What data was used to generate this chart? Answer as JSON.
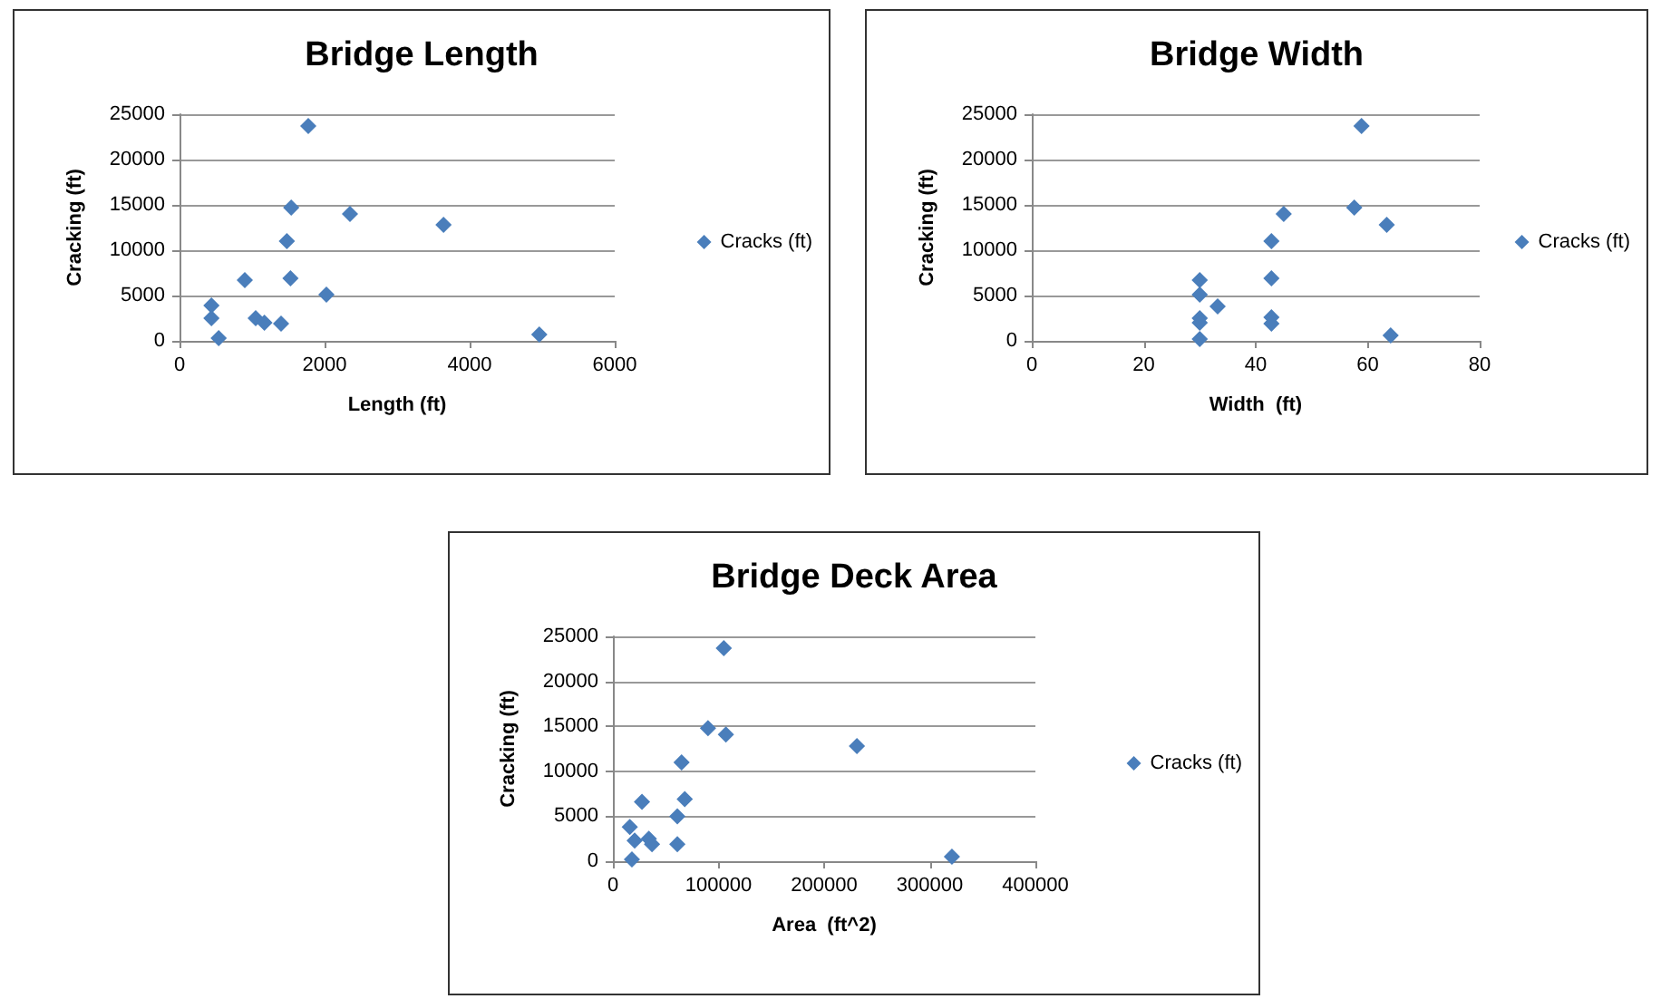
{
  "chart_data": [
    {
      "type": "scatter",
      "title": "Bridge Length",
      "xlabel": "Length (ft)",
      "ylabel": "Cracking (ft)",
      "xlim": [
        0,
        6000
      ],
      "xticks": [
        0,
        2000,
        4000,
        6000
      ],
      "ylim": [
        0,
        25000
      ],
      "yticks": [
        0,
        5000,
        10000,
        15000,
        20000,
        25000
      ],
      "grid": "y",
      "legend": "right",
      "marker": "diamond",
      "series": [
        {
          "name": "Cracks (ft)",
          "color": "#4a7ebb",
          "x": [
            1775,
            1540,
            2350,
            3640,
            1480,
            900,
            1530,
            2025,
            440,
            440,
            1050,
            1170,
            1400,
            540,
            4960
          ],
          "values": [
            23700,
            14700,
            14000,
            12800,
            11000,
            6700,
            6900,
            5100,
            3900,
            2500,
            2500,
            2000,
            1900,
            300,
            700
          ]
        }
      ]
    },
    {
      "type": "scatter",
      "title": "Bridge Width",
      "xlabel": "Width  (ft)",
      "ylabel": "Cracking (ft)",
      "xlim": [
        0,
        80
      ],
      "xticks": [
        0,
        20,
        40,
        60,
        80
      ],
      "ylim": [
        0,
        25000
      ],
      "yticks": [
        0,
        5000,
        10000,
        15000,
        20000,
        25000
      ],
      "grid": "y",
      "legend": "right",
      "marker": "diamond",
      "series": [
        {
          "name": "Cracks (ft)",
          "color": "#4a7ebb",
          "x": [
            58.9,
            57.6,
            45,
            63.4,
            42.8,
            30,
            42.8,
            30,
            33.2,
            30,
            30,
            42.8,
            42.8,
            30,
            64.1
          ],
          "values": [
            23700,
            14700,
            14000,
            12800,
            11000,
            6700,
            6900,
            5100,
            3800,
            2500,
            2000,
            2600,
            1900,
            200,
            600
          ]
        }
      ]
    },
    {
      "type": "scatter",
      "title": "Bridge Deck Area",
      "xlabel": "Area  (ft^2)",
      "ylabel": "Cracking (ft)",
      "xlim": [
        0,
        400000
      ],
      "xticks": [
        0,
        100000,
        200000,
        300000,
        400000
      ],
      "ylim": [
        0,
        25000
      ],
      "yticks": [
        0,
        5000,
        10000,
        15000,
        20000,
        25000
      ],
      "grid": "y",
      "legend": "right",
      "marker": "diamond",
      "series": [
        {
          "name": "Cracks (ft)",
          "color": "#4a7ebb",
          "x": [
            105000,
            90000,
            107000,
            231000,
            65000,
            27500,
            68000,
            61000,
            16000,
            20600,
            34000,
            37000,
            61000,
            18000,
            321000
          ],
          "values": [
            23700,
            14800,
            14100,
            12800,
            11000,
            6600,
            6900,
            5000,
            3800,
            2300,
            2500,
            1900,
            1900,
            200,
            500
          ]
        }
      ]
    }
  ]
}
